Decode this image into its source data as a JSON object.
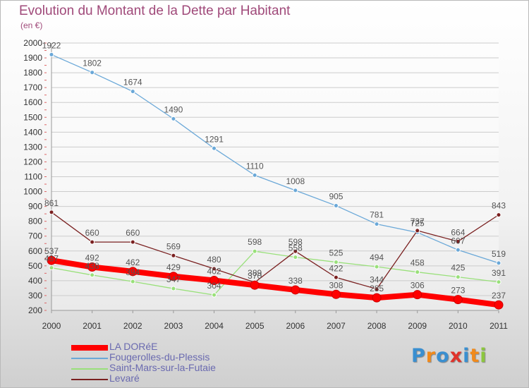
{
  "title": "Evolution du Montant de la Dette par Habitant",
  "unit": "(en €)",
  "logo_text": "Proxiti",
  "colors": {
    "title": "#a04a7a",
    "grid": "#cccccc",
    "axis": "#999999",
    "tick_text": "#333333",
    "value_text": "#555555",
    "legend_text": "#6a6ab0"
  },
  "chart_data": {
    "type": "line",
    "title": "Evolution du Montant de la Dette par Habitant",
    "subtitle": "(en €)",
    "x": [
      "2000",
      "2001",
      "2002",
      "2003",
      "2004",
      "2005",
      "2006",
      "2007",
      "2008",
      "2009",
      "2010",
      "2011"
    ],
    "ylim": [
      200,
      2000
    ],
    "yticks": [
      200,
      300,
      400,
      500,
      600,
      700,
      800,
      900,
      1000,
      1100,
      1200,
      1300,
      1400,
      1500,
      1600,
      1700,
      1800,
      1900,
      2000
    ],
    "grid": "horizontal",
    "legend_position": "bottom-left",
    "series": [
      {
        "name": "LA DORéE",
        "color": "#ff0000",
        "width": 8,
        "marker": 6,
        "values": [
          537,
          492,
          462,
          429,
          402,
          370,
          338,
          308,
          285,
          306,
          273,
          237
        ]
      },
      {
        "name": "Fougerolles-du-Plessis",
        "color": "#6aa8d8",
        "width": 1.3,
        "marker": 3,
        "values": [
          1922,
          1802,
          1674,
          1490,
          1291,
          1110,
          1008,
          905,
          781,
          725,
          607,
          519
        ]
      },
      {
        "name": "Saint-Mars-sur-la-Futaie",
        "color": "#99e07a",
        "width": 1.3,
        "marker": 3,
        "values": [
          487,
          438,
          394,
          347,
          304,
          598,
          558,
          525,
          494,
          458,
          425,
          391
        ]
      },
      {
        "name": "Levaré",
        "color": "#7a2020",
        "width": 1.3,
        "marker": 3,
        "values": [
          861,
          660,
          660,
          569,
          480,
          389,
          598,
          422,
          344,
          737,
          664,
          843
        ]
      }
    ]
  }
}
